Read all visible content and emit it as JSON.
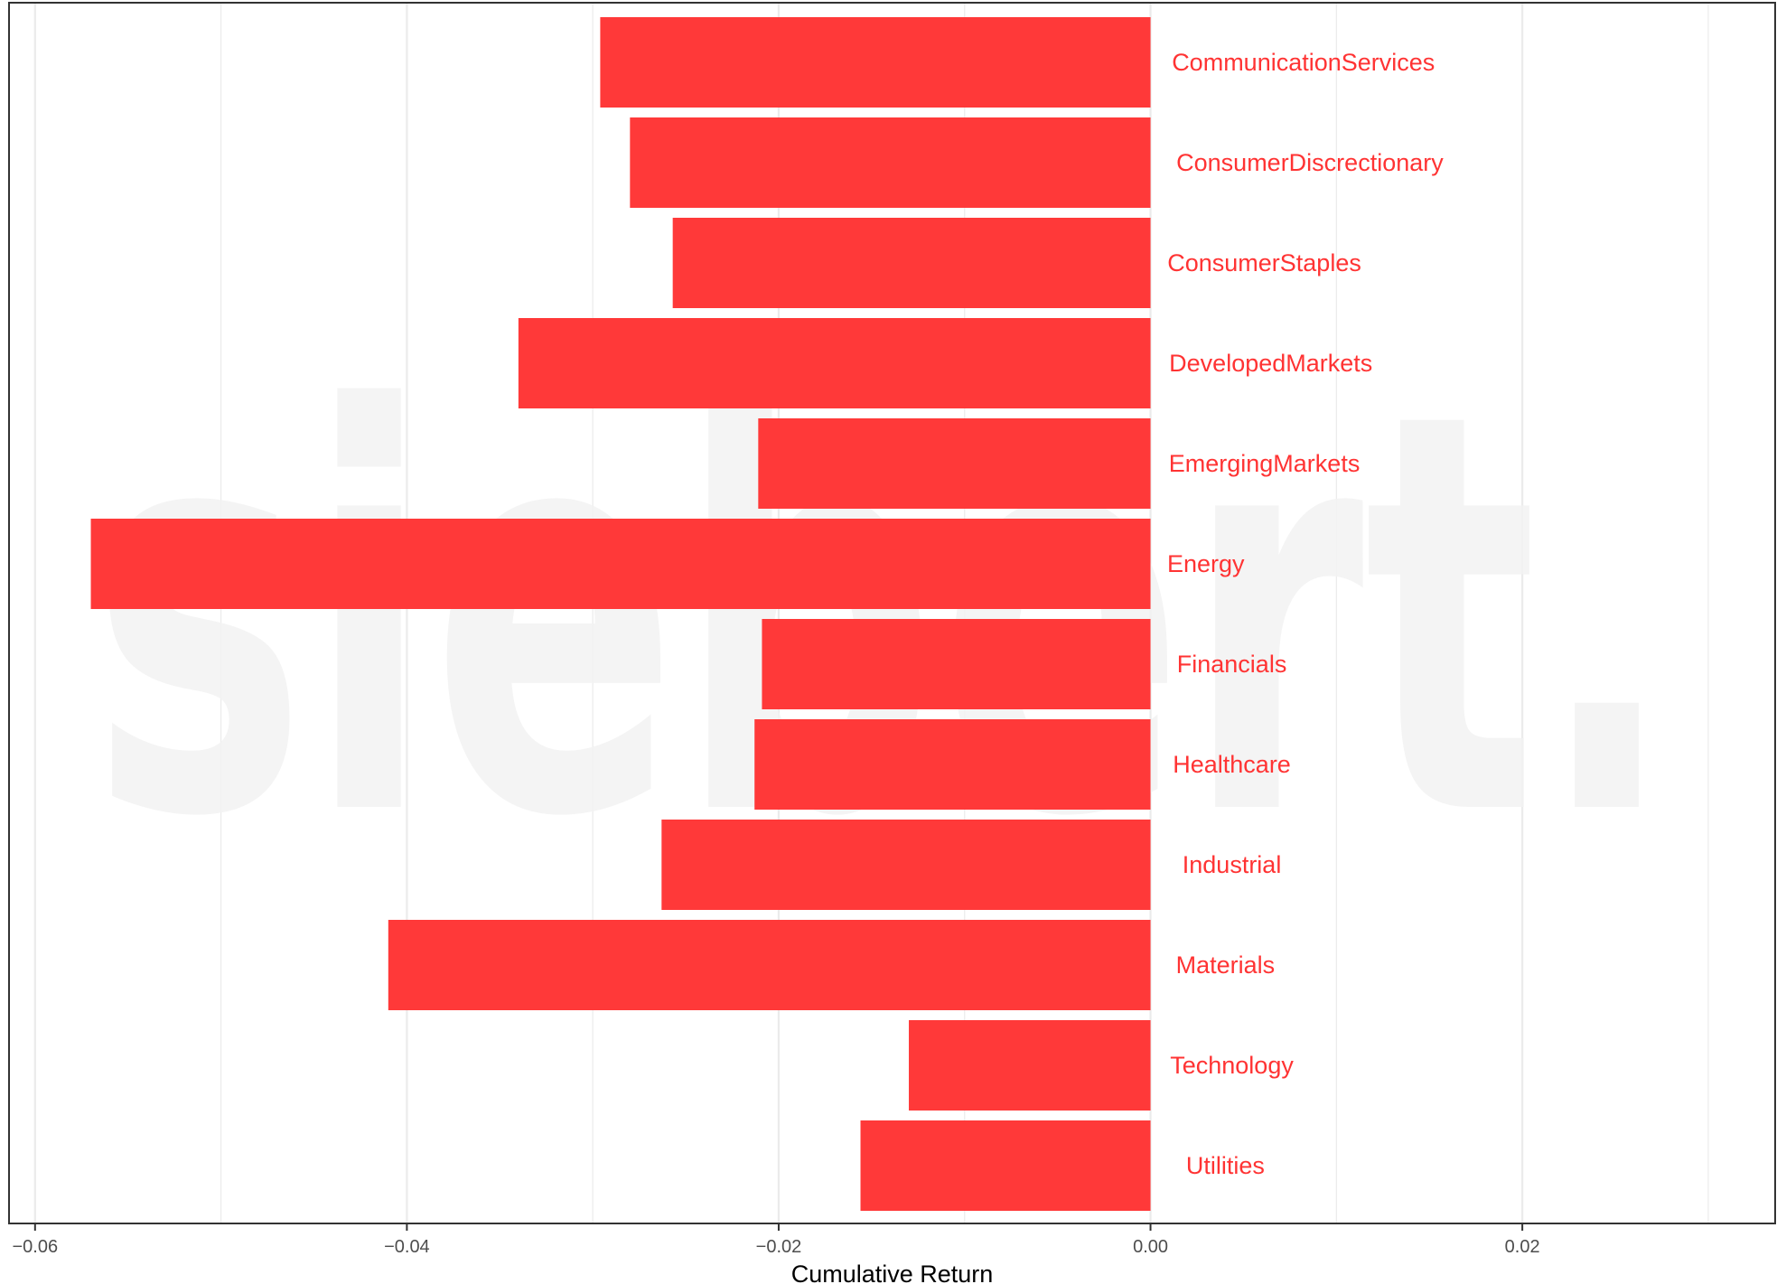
{
  "watermark": "siebert.",
  "colors": {
    "bar": "#ff3333",
    "label": "#ff3333",
    "grid": "#ebebeb",
    "panel_border": "#333333",
    "watermark": "#f2f2f2"
  },
  "chart_data": {
    "type": "bar",
    "orientation": "horizontal",
    "categories": [
      "Utilities",
      "Technology",
      "Materials",
      "Industrial",
      "Healthcare",
      "Financials",
      "Energy",
      "EmergingMarkets",
      "DevelopedMarkets",
      "ConsumerStaples",
      "ConsumerDiscrectionary",
      "CommunicationServices"
    ],
    "values": [
      -0.0156,
      -0.013,
      -0.041,
      -0.0263,
      -0.0213,
      -0.0209,
      -0.057,
      -0.0211,
      -0.034,
      -0.0257,
      -0.028,
      -0.0296
    ],
    "xlabel": "Cumulative Return",
    "ylabel": "",
    "xlim": [
      -0.0614,
      0.0336
    ],
    "xticks": [
      -0.06,
      -0.04,
      -0.02,
      0.0,
      0.02
    ],
    "xtick_labels": [
      "−0.06",
      "−0.04",
      "−0.02",
      "0.00",
      "0.02"
    ],
    "minor_gridlines": [
      -0.05,
      -0.03,
      -0.01,
      0.01,
      0.03
    ],
    "grid": true,
    "legend": "none"
  }
}
